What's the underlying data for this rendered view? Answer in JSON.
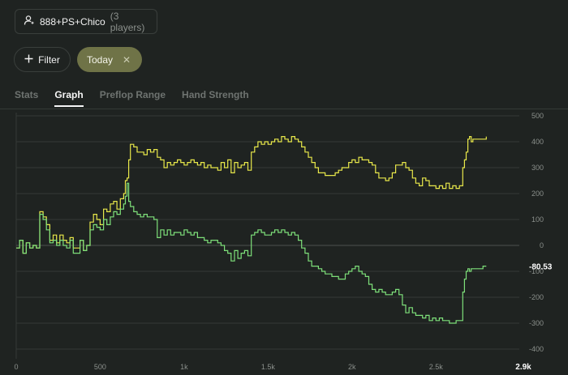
{
  "session": {
    "icon": "user-icon",
    "name": "888+PS+Chico",
    "players": "(3 players)"
  },
  "filter": {
    "icon": "plus-icon",
    "label": "Filter"
  },
  "chip": {
    "label": "Today",
    "close_icon": "close-icon"
  },
  "tabs": [
    {
      "label": "Stats",
      "active": false
    },
    {
      "label": "Graph",
      "active": true
    },
    {
      "label": "Preflop Range",
      "active": false
    },
    {
      "label": "Hand Strength",
      "active": false
    }
  ],
  "colors": {
    "background": "#1f2321",
    "chip": "#6f7347",
    "series_yellow": "#e8e84a",
    "series_green": "#7ee07a"
  },
  "chart_data": {
    "type": "line",
    "x_ticks": [
      "0",
      "500",
      "1k",
      "1.5k",
      "2k",
      "2.5k"
    ],
    "x_tick_values": [
      0,
      500,
      1000,
      1500,
      2000,
      2500
    ],
    "x_max_label": "2.9k",
    "xlim": [
      0,
      2900
    ],
    "y_ticks": [
      "500",
      "400",
      "300",
      "200",
      "100",
      "0",
      "-100",
      "-200",
      "-300",
      "-400"
    ],
    "y_tick_values": [
      500,
      400,
      300,
      200,
      100,
      0,
      -100,
      -200,
      -300,
      -400
    ],
    "ylim": [
      -400,
      500
    ],
    "last_value_label": "-80.53",
    "grid": true,
    "series": [
      {
        "color": "#e8e84a",
        "points": [
          [
            0,
            -10
          ],
          [
            20,
            20
          ],
          [
            40,
            -30
          ],
          [
            60,
            10
          ],
          [
            80,
            -10
          ],
          [
            100,
            0
          ],
          [
            120,
            -10
          ],
          [
            140,
            130
          ],
          [
            160,
            110
          ],
          [
            180,
            80
          ],
          [
            200,
            20
          ],
          [
            220,
            40
          ],
          [
            240,
            10
          ],
          [
            260,
            40
          ],
          [
            280,
            20
          ],
          [
            300,
            10
          ],
          [
            320,
            30
          ],
          [
            340,
            -10
          ],
          [
            380,
            20
          ],
          [
            400,
            -20
          ],
          [
            420,
            0
          ],
          [
            440,
            90
          ],
          [
            460,
            120
          ],
          [
            480,
            100
          ],
          [
            500,
            80
          ],
          [
            520,
            140
          ],
          [
            540,
            130
          ],
          [
            560,
            160
          ],
          [
            580,
            170
          ],
          [
            600,
            140
          ],
          [
            620,
            180
          ],
          [
            640,
            200
          ],
          [
            650,
            250
          ],
          [
            660,
            260
          ],
          [
            670,
            330
          ],
          [
            680,
            390
          ],
          [
            700,
            380
          ],
          [
            720,
            360
          ],
          [
            740,
            360
          ],
          [
            760,
            350
          ],
          [
            780,
            370
          ],
          [
            800,
            360
          ],
          [
            820,
            370
          ],
          [
            840,
            340
          ],
          [
            860,
            330
          ],
          [
            880,
            300
          ],
          [
            900,
            320
          ],
          [
            920,
            310
          ],
          [
            940,
            320
          ],
          [
            960,
            330
          ],
          [
            980,
            320
          ],
          [
            1000,
            310
          ],
          [
            1020,
            320
          ],
          [
            1040,
            330
          ],
          [
            1060,
            320
          ],
          [
            1080,
            310
          ],
          [
            1100,
            320
          ],
          [
            1120,
            300
          ],
          [
            1140,
            310
          ],
          [
            1160,
            300
          ],
          [
            1180,
            300
          ],
          [
            1200,
            290
          ],
          [
            1220,
            320
          ],
          [
            1240,
            300
          ],
          [
            1260,
            330
          ],
          [
            1280,
            280
          ],
          [
            1300,
            320
          ],
          [
            1320,
            300
          ],
          [
            1340,
            310
          ],
          [
            1360,
            320
          ],
          [
            1380,
            290
          ],
          [
            1400,
            360
          ],
          [
            1420,
            380
          ],
          [
            1440,
            400
          ],
          [
            1460,
            390
          ],
          [
            1480,
            400
          ],
          [
            1500,
            390
          ],
          [
            1520,
            400
          ],
          [
            1540,
            410
          ],
          [
            1560,
            400
          ],
          [
            1580,
            420
          ],
          [
            1600,
            410
          ],
          [
            1620,
            400
          ],
          [
            1640,
            420
          ],
          [
            1660,
            410
          ],
          [
            1680,
            400
          ],
          [
            1700,
            380
          ],
          [
            1720,
            360
          ],
          [
            1740,
            340
          ],
          [
            1760,
            320
          ],
          [
            1780,
            300
          ],
          [
            1800,
            280
          ],
          [
            1820,
            280
          ],
          [
            1840,
            270
          ],
          [
            1860,
            270
          ],
          [
            1880,
            270
          ],
          [
            1900,
            280
          ],
          [
            1920,
            290
          ],
          [
            1940,
            300
          ],
          [
            1960,
            300
          ],
          [
            1980,
            320
          ],
          [
            2000,
            330
          ],
          [
            2020,
            320
          ],
          [
            2040,
            340
          ],
          [
            2060,
            330
          ],
          [
            2080,
            330
          ],
          [
            2100,
            320
          ],
          [
            2120,
            310
          ],
          [
            2140,
            280
          ],
          [
            2160,
            260
          ],
          [
            2180,
            260
          ],
          [
            2200,
            250
          ],
          [
            2220,
            260
          ],
          [
            2240,
            280
          ],
          [
            2260,
            310
          ],
          [
            2280,
            310
          ],
          [
            2300,
            320
          ],
          [
            2320,
            300
          ],
          [
            2340,
            290
          ],
          [
            2360,
            260
          ],
          [
            2380,
            240
          ],
          [
            2400,
            230
          ],
          [
            2420,
            260
          ],
          [
            2440,
            250
          ],
          [
            2460,
            230
          ],
          [
            2480,
            230
          ],
          [
            2500,
            220
          ],
          [
            2520,
            230
          ],
          [
            2540,
            220
          ],
          [
            2560,
            240
          ],
          [
            2580,
            220
          ],
          [
            2600,
            230
          ],
          [
            2620,
            220
          ],
          [
            2640,
            230
          ],
          [
            2660,
            300
          ],
          [
            2670,
            330
          ],
          [
            2680,
            360
          ],
          [
            2690,
            410
          ],
          [
            2700,
            420
          ],
          [
            2710,
            400
          ],
          [
            2720,
            410
          ],
          [
            2740,
            410
          ],
          [
            2760,
            410
          ],
          [
            2780,
            410
          ],
          [
            2800,
            420
          ]
        ]
      },
      {
        "color": "#7ee07a",
        "points": [
          [
            0,
            -10
          ],
          [
            20,
            20
          ],
          [
            40,
            -30
          ],
          [
            60,
            10
          ],
          [
            80,
            -10
          ],
          [
            100,
            0
          ],
          [
            120,
            -10
          ],
          [
            140,
            120
          ],
          [
            160,
            100
          ],
          [
            180,
            60
          ],
          [
            200,
            10
          ],
          [
            220,
            20
          ],
          [
            240,
            0
          ],
          [
            260,
            20
          ],
          [
            280,
            0
          ],
          [
            300,
            -10
          ],
          [
            320,
            20
          ],
          [
            340,
            -30
          ],
          [
            380,
            20
          ],
          [
            400,
            -20
          ],
          [
            420,
            0
          ],
          [
            440,
            60
          ],
          [
            460,
            80
          ],
          [
            480,
            70
          ],
          [
            500,
            60
          ],
          [
            520,
            100
          ],
          [
            540,
            80
          ],
          [
            560,
            110
          ],
          [
            580,
            130
          ],
          [
            600,
            120
          ],
          [
            620,
            140
          ],
          [
            640,
            160
          ],
          [
            650,
            190
          ],
          [
            660,
            240
          ],
          [
            670,
            170
          ],
          [
            680,
            150
          ],
          [
            700,
            130
          ],
          [
            720,
            120
          ],
          [
            740,
            110
          ],
          [
            760,
            120
          ],
          [
            780,
            110
          ],
          [
            800,
            110
          ],
          [
            820,
            100
          ],
          [
            840,
            30
          ],
          [
            860,
            60
          ],
          [
            880,
            40
          ],
          [
            900,
            60
          ],
          [
            920,
            40
          ],
          [
            940,
            50
          ],
          [
            960,
            50
          ],
          [
            980,
            40
          ],
          [
            1000,
            60
          ],
          [
            1020,
            50
          ],
          [
            1040,
            40
          ],
          [
            1060,
            50
          ],
          [
            1080,
            30
          ],
          [
            1100,
            30
          ],
          [
            1120,
            20
          ],
          [
            1140,
            10
          ],
          [
            1160,
            20
          ],
          [
            1180,
            20
          ],
          [
            1200,
            10
          ],
          [
            1220,
            0
          ],
          [
            1240,
            -20
          ],
          [
            1260,
            -30
          ],
          [
            1280,
            -60
          ],
          [
            1300,
            -20
          ],
          [
            1320,
            -50
          ],
          [
            1340,
            -30
          ],
          [
            1360,
            -20
          ],
          [
            1380,
            -40
          ],
          [
            1400,
            40
          ],
          [
            1420,
            50
          ],
          [
            1440,
            60
          ],
          [
            1460,
            50
          ],
          [
            1480,
            40
          ],
          [
            1500,
            40
          ],
          [
            1520,
            50
          ],
          [
            1540,
            60
          ],
          [
            1560,
            50
          ],
          [
            1580,
            60
          ],
          [
            1600,
            50
          ],
          [
            1620,
            40
          ],
          [
            1640,
            50
          ],
          [
            1660,
            40
          ],
          [
            1680,
            20
          ],
          [
            1700,
            -10
          ],
          [
            1720,
            -30
          ],
          [
            1740,
            -60
          ],
          [
            1760,
            -80
          ],
          [
            1780,
            -80
          ],
          [
            1800,
            -90
          ],
          [
            1820,
            -100
          ],
          [
            1840,
            -110
          ],
          [
            1860,
            -110
          ],
          [
            1880,
            -120
          ],
          [
            1900,
            -120
          ],
          [
            1920,
            -130
          ],
          [
            1940,
            -130
          ],
          [
            1960,
            -110
          ],
          [
            1980,
            -100
          ],
          [
            2000,
            -90
          ],
          [
            2020,
            -80
          ],
          [
            2040,
            -100
          ],
          [
            2060,
            -110
          ],
          [
            2080,
            -120
          ],
          [
            2100,
            -150
          ],
          [
            2120,
            -170
          ],
          [
            2140,
            -180
          ],
          [
            2160,
            -170
          ],
          [
            2180,
            -180
          ],
          [
            2200,
            -190
          ],
          [
            2220,
            -190
          ],
          [
            2240,
            -180
          ],
          [
            2260,
            -170
          ],
          [
            2280,
            -190
          ],
          [
            2300,
            -230
          ],
          [
            2320,
            -260
          ],
          [
            2340,
            -240
          ],
          [
            2360,
            -260
          ],
          [
            2380,
            -270
          ],
          [
            2400,
            -270
          ],
          [
            2420,
            -280
          ],
          [
            2440,
            -270
          ],
          [
            2460,
            -290
          ],
          [
            2480,
            -280
          ],
          [
            2500,
            -290
          ],
          [
            2520,
            -280
          ],
          [
            2540,
            -290
          ],
          [
            2560,
            -290
          ],
          [
            2580,
            -300
          ],
          [
            2600,
            -300
          ],
          [
            2620,
            -290
          ],
          [
            2640,
            -290
          ],
          [
            2660,
            -180
          ],
          [
            2670,
            -130
          ],
          [
            2680,
            -100
          ],
          [
            2690,
            -90
          ],
          [
            2700,
            -100
          ],
          [
            2710,
            -90
          ],
          [
            2720,
            -90
          ],
          [
            2740,
            -90
          ],
          [
            2760,
            -90
          ],
          [
            2780,
            -80
          ],
          [
            2800,
            -80
          ]
        ]
      }
    ]
  }
}
